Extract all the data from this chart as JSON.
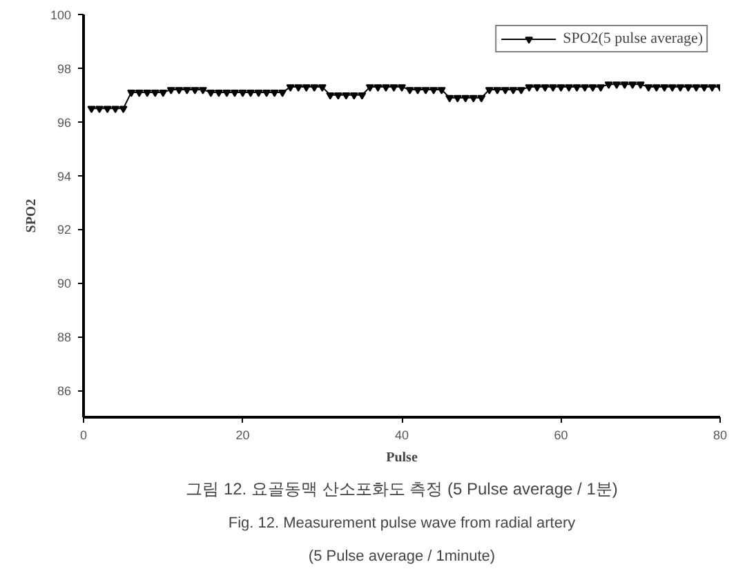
{
  "chart_data": {
    "type": "line",
    "xlabel": "Pulse",
    "ylabel": "SPO2",
    "annotations": [
      "그림 12. 요골동맥 산소포화도 측정 (5 Pulse average / 1분)",
      "Fig. 12. Measurement pulse wave from radial artery",
      "(5 Pulse average / 1minute)"
    ],
    "x": [
      1,
      2,
      3,
      4,
      5,
      6,
      7,
      8,
      9,
      10,
      11,
      12,
      13,
      14,
      15,
      16,
      17,
      18,
      19,
      20,
      21,
      22,
      23,
      24,
      25,
      26,
      27,
      28,
      29,
      30,
      31,
      32,
      33,
      34,
      35,
      36,
      37,
      38,
      39,
      40,
      41,
      42,
      43,
      44,
      45,
      46,
      47,
      48,
      49,
      50,
      51,
      52,
      53,
      54,
      55,
      56,
      57,
      58,
      59,
      60,
      61,
      62,
      63,
      64,
      65,
      66,
      67,
      68,
      69,
      70,
      71,
      72,
      73,
      74,
      75,
      76,
      77,
      78,
      79,
      80
    ],
    "series": [
      {
        "name": "SPO2(5 pulse average)",
        "color": "#000000",
        "values": [
          96.5,
          96.5,
          96.5,
          96.5,
          96.5,
          97.1,
          97.1,
          97.1,
          97.1,
          97.1,
          97.2,
          97.2,
          97.2,
          97.2,
          97.2,
          97.1,
          97.1,
          97.1,
          97.1,
          97.1,
          97.1,
          97.1,
          97.1,
          97.1,
          97.1,
          97.3,
          97.3,
          97.3,
          97.3,
          97.3,
          97.0,
          97.0,
          97.0,
          97.0,
          97.0,
          97.3,
          97.3,
          97.3,
          97.3,
          97.3,
          97.2,
          97.2,
          97.2,
          97.2,
          97.2,
          96.9,
          96.9,
          96.9,
          96.9,
          96.9,
          97.2,
          97.2,
          97.2,
          97.2,
          97.2,
          97.3,
          97.3,
          97.3,
          97.3,
          97.3,
          97.3,
          97.3,
          97.3,
          97.3,
          97.3,
          97.4,
          97.4,
          97.4,
          97.4,
          97.4,
          97.3,
          97.3,
          97.3,
          97.3,
          97.3,
          97.3,
          97.3,
          97.3,
          97.3,
          97.3
        ]
      }
    ],
    "xlim": [
      0,
      80
    ],
    "ylim": [
      85,
      100
    ],
    "xticks": [
      0,
      20,
      40,
      60,
      80
    ],
    "yticks": [
      86,
      88,
      90,
      92,
      94,
      96,
      98,
      100
    ],
    "grid": false,
    "legend": "top right",
    "marker": "triangle",
    "line_style": "solid"
  }
}
